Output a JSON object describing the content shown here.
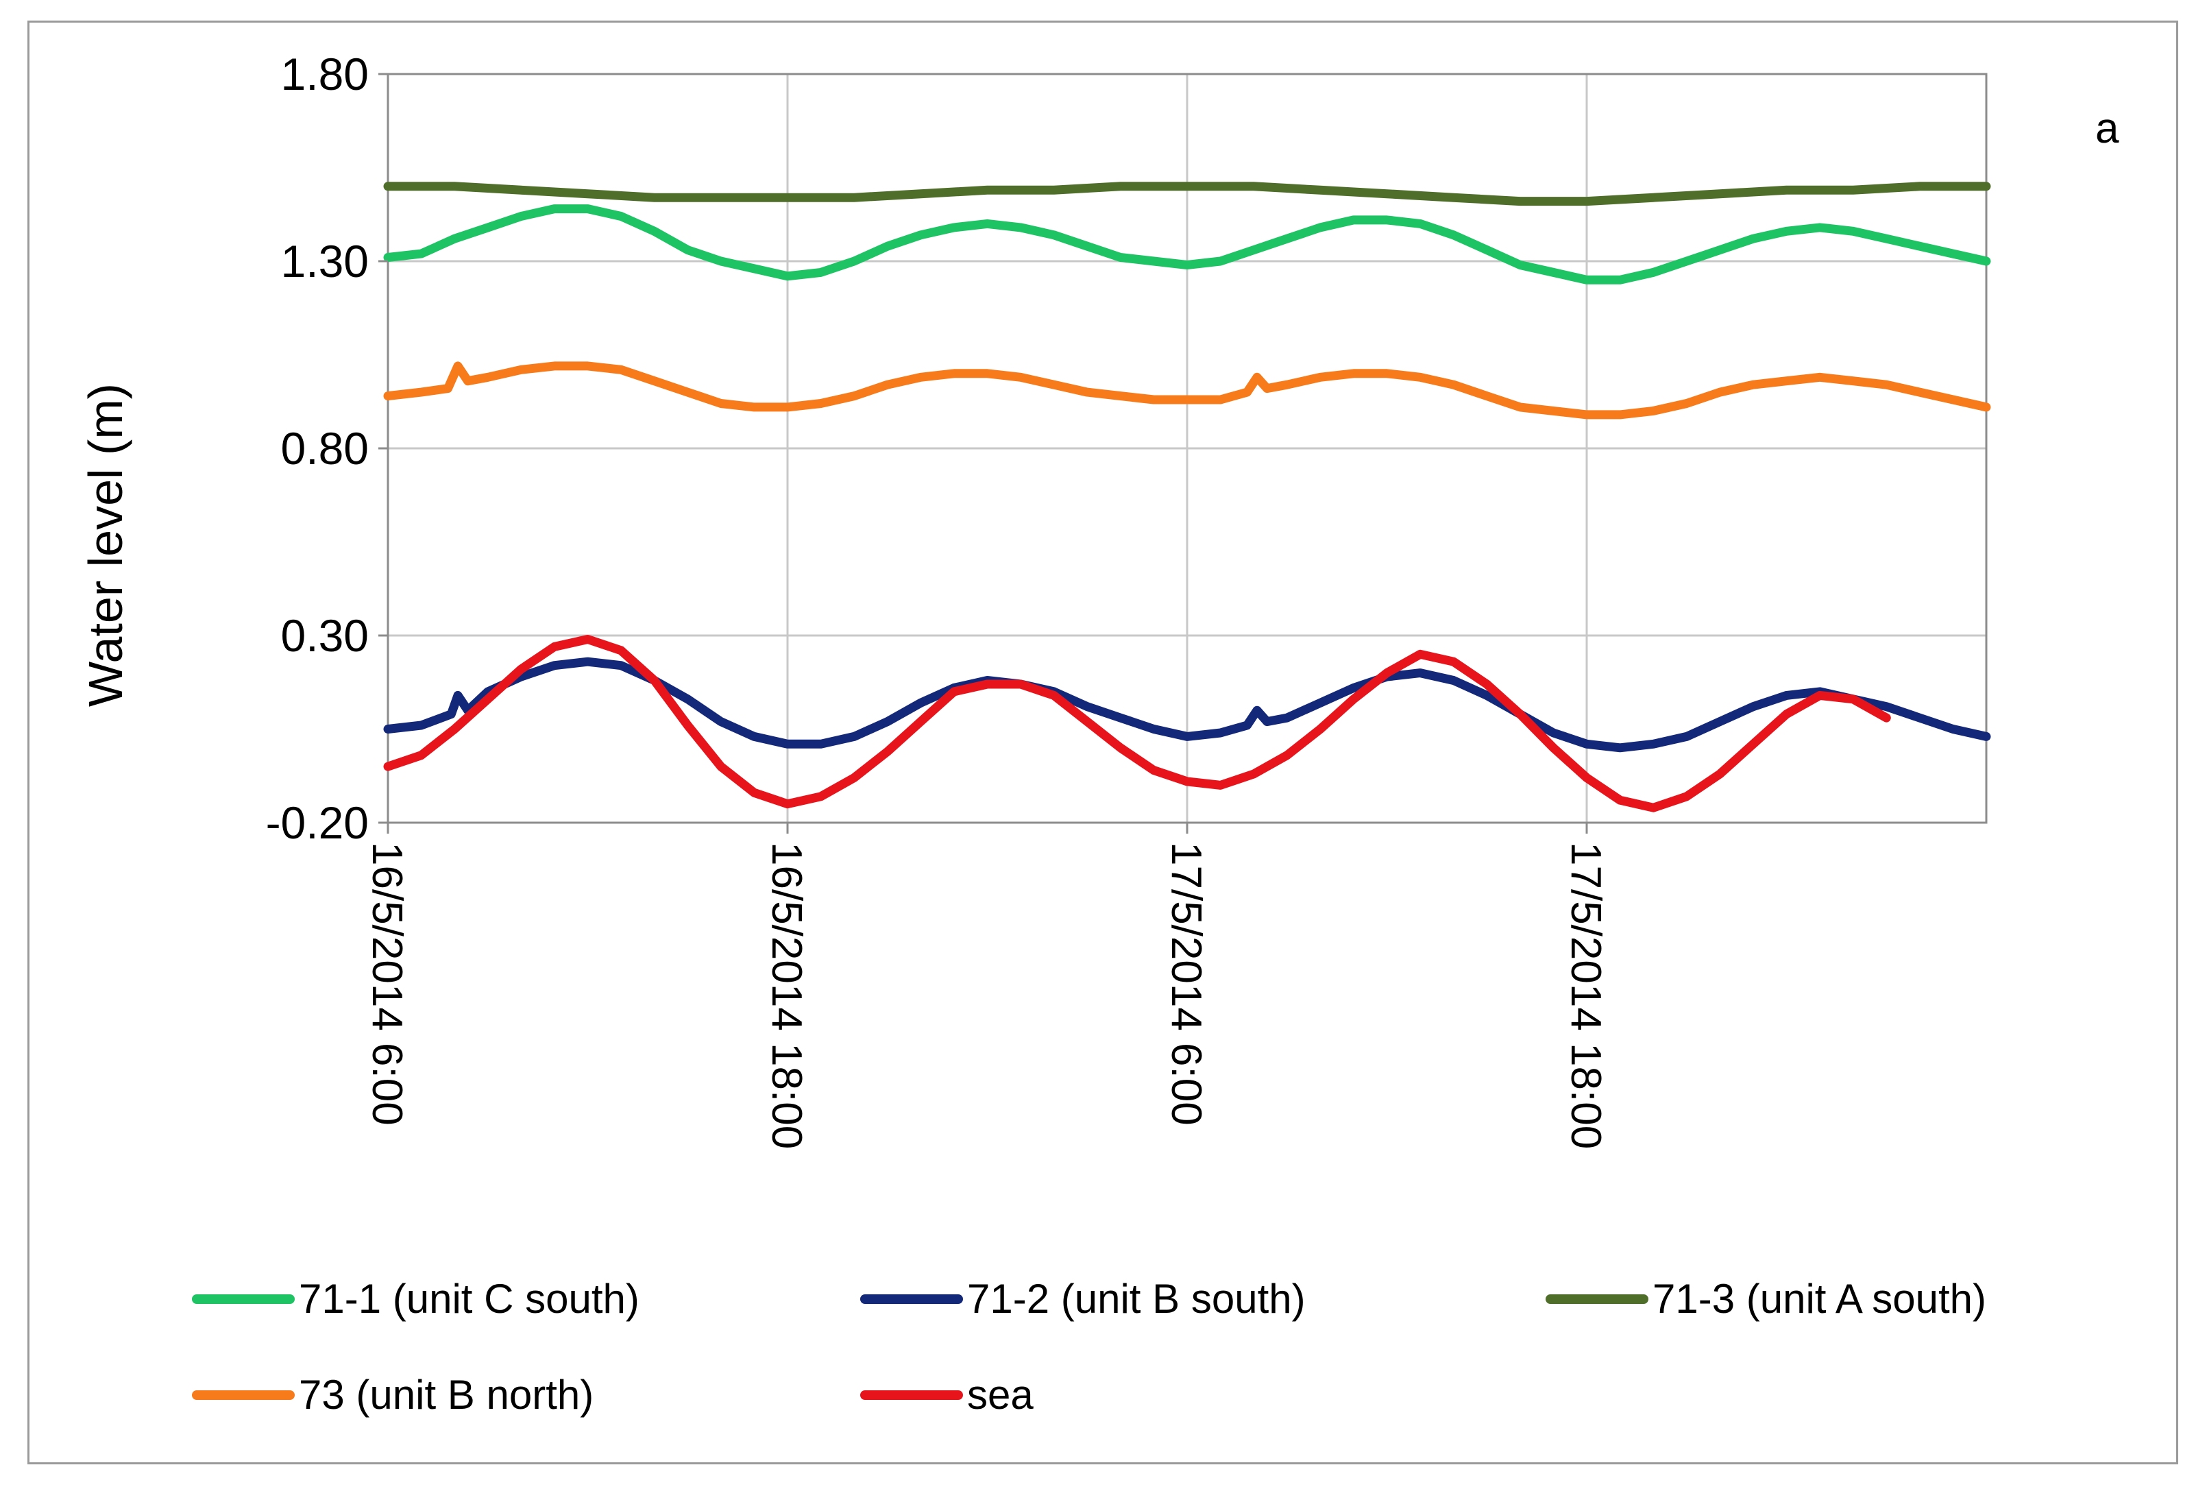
{
  "chart_data": {
    "type": "line",
    "panel_label": "a",
    "title": "",
    "xlabel": "",
    "ylabel": "Water level (m)",
    "ylim": [
      -0.2,
      1.8
    ],
    "yticks": [
      "1.80",
      "1.30",
      "0.80",
      "0.30",
      "-0.20"
    ],
    "ytick_values": [
      1.8,
      1.3,
      0.8,
      0.3,
      -0.2
    ],
    "xlim_hours": [
      0,
      48
    ],
    "xticks": [
      "16/5/2014 6:00",
      "16/5/2014 18:00",
      "17/5/2014 6:00",
      "17/5/2014 18:00"
    ],
    "xtick_hours": [
      0,
      12,
      24,
      36
    ],
    "x_unit": "hours since 16/5/2014 6:00",
    "grid": true,
    "legend_position": "bottom",
    "series": [
      {
        "name": "71-1 (unit C south)",
        "color": "#1ec464",
        "x": [
          0,
          1,
          2,
          3,
          4,
          5,
          6,
          7,
          8,
          9,
          10,
          11,
          12,
          13,
          14,
          15,
          16,
          17,
          18,
          19,
          20,
          21,
          22,
          23,
          24,
          25,
          26,
          27,
          28,
          29,
          30,
          31,
          32,
          33,
          34,
          35,
          36,
          37,
          38,
          39,
          40,
          41,
          42,
          43,
          44,
          45,
          46,
          47,
          48
        ],
        "y": [
          1.31,
          1.32,
          1.36,
          1.39,
          1.42,
          1.44,
          1.44,
          1.42,
          1.38,
          1.33,
          1.3,
          1.28,
          1.26,
          1.27,
          1.3,
          1.34,
          1.37,
          1.39,
          1.4,
          1.39,
          1.37,
          1.34,
          1.31,
          1.3,
          1.29,
          1.3,
          1.33,
          1.36,
          1.39,
          1.41,
          1.41,
          1.4,
          1.37,
          1.33,
          1.29,
          1.27,
          1.25,
          1.25,
          1.27,
          1.3,
          1.33,
          1.36,
          1.38,
          1.39,
          1.38,
          1.36,
          1.34,
          1.32,
          1.3
        ]
      },
      {
        "name": "71-2 (unit B south)",
        "color": "#14287a",
        "x": [
          0,
          1,
          1.9,
          2.1,
          2.4,
          3,
          4,
          5,
          6,
          7,
          8,
          9,
          10,
          11,
          12,
          13,
          14,
          15,
          16,
          17,
          18,
          19,
          20,
          21,
          22,
          23,
          24,
          25,
          25.8,
          26.1,
          26.4,
          27,
          28,
          29,
          30,
          31,
          32,
          33,
          34,
          35,
          36,
          37,
          38,
          39,
          40,
          41,
          42,
          43,
          44,
          45,
          46,
          47,
          48
        ],
        "y": [
          0.05,
          0.06,
          0.09,
          0.14,
          0.1,
          0.15,
          0.19,
          0.22,
          0.23,
          0.22,
          0.18,
          0.13,
          0.07,
          0.03,
          0.01,
          0.01,
          0.03,
          0.07,
          0.12,
          0.16,
          0.18,
          0.17,
          0.15,
          0.11,
          0.08,
          0.05,
          0.03,
          0.04,
          0.06,
          0.1,
          0.07,
          0.08,
          0.12,
          0.16,
          0.19,
          0.2,
          0.18,
          0.14,
          0.09,
          0.04,
          0.01,
          0.0,
          0.01,
          0.03,
          0.07,
          0.11,
          0.14,
          0.15,
          0.13,
          0.11,
          0.08,
          0.05,
          0.03
        ]
      },
      {
        "name": "71-3 (unit A south)",
        "color": "#4f6e2a",
        "x": [
          0,
          2,
          4,
          6,
          8,
          10,
          12,
          14,
          16,
          18,
          20,
          22,
          24,
          26,
          28,
          30,
          32,
          34,
          36,
          38,
          40,
          42,
          44,
          46,
          48
        ],
        "y": [
          1.5,
          1.5,
          1.49,
          1.48,
          1.47,
          1.47,
          1.47,
          1.47,
          1.48,
          1.49,
          1.49,
          1.5,
          1.5,
          1.5,
          1.49,
          1.48,
          1.47,
          1.46,
          1.46,
          1.47,
          1.48,
          1.49,
          1.49,
          1.5,
          1.5
        ]
      },
      {
        "name": "73 (unit  B north)",
        "color": "#f77b1a",
        "x": [
          0,
          1,
          1.8,
          2.1,
          2.4,
          3,
          4,
          5,
          6,
          7,
          8,
          9,
          10,
          11,
          12,
          13,
          14,
          15,
          16,
          17,
          18,
          19,
          20,
          21,
          22,
          23,
          24,
          25,
          25.8,
          26.1,
          26.4,
          27,
          28,
          29,
          30,
          31,
          32,
          33,
          34,
          35,
          36,
          37,
          38,
          39,
          40,
          41,
          42,
          43,
          44,
          45,
          46,
          47,
          48
        ],
        "y": [
          0.94,
          0.95,
          0.96,
          1.02,
          0.98,
          0.99,
          1.01,
          1.02,
          1.02,
          1.01,
          0.98,
          0.95,
          0.92,
          0.91,
          0.91,
          0.92,
          0.94,
          0.97,
          0.99,
          1.0,
          1.0,
          0.99,
          0.97,
          0.95,
          0.94,
          0.93,
          0.93,
          0.93,
          0.95,
          0.99,
          0.96,
          0.97,
          0.99,
          1.0,
          1.0,
          0.99,
          0.97,
          0.94,
          0.91,
          0.9,
          0.89,
          0.89,
          0.9,
          0.92,
          0.95,
          0.97,
          0.98,
          0.99,
          0.98,
          0.97,
          0.95,
          0.93,
          0.91
        ]
      },
      {
        "name": "sea",
        "color": "#e8141c",
        "x": [
          0,
          1,
          2,
          3,
          4,
          5,
          6,
          7,
          8,
          9,
          10,
          11,
          12,
          13,
          14,
          15,
          16,
          17,
          18,
          19,
          20,
          21,
          22,
          23,
          24,
          25,
          26,
          27,
          28,
          29,
          30,
          31,
          32,
          33,
          34,
          35,
          36,
          37,
          38,
          39,
          40,
          41,
          42,
          43,
          44,
          45
        ],
        "y": [
          -0.05,
          -0.02,
          0.05,
          0.13,
          0.21,
          0.27,
          0.29,
          0.26,
          0.18,
          0.06,
          -0.05,
          -0.12,
          -0.15,
          -0.13,
          -0.08,
          -0.01,
          0.07,
          0.15,
          0.17,
          0.17,
          0.14,
          0.07,
          0.0,
          -0.06,
          -0.09,
          -0.1,
          -0.07,
          -0.02,
          0.05,
          0.13,
          0.2,
          0.25,
          0.23,
          0.17,
          0.09,
          0.0,
          -0.08,
          -0.14,
          -0.16,
          -0.13,
          -0.07,
          0.01,
          0.09,
          0.14,
          0.13,
          0.08
        ]
      }
    ]
  }
}
